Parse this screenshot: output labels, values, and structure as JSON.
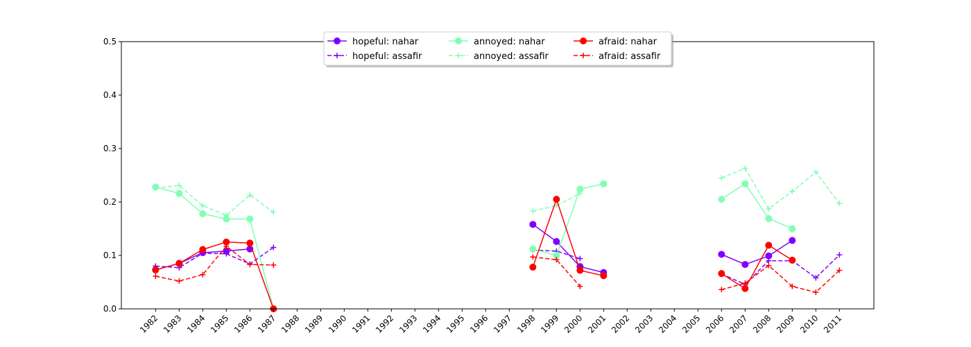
{
  "chart_data": {
    "type": "line",
    "title": "",
    "xlabel": "",
    "ylabel": "",
    "ylim": [
      0,
      0.5
    ],
    "yticks": [
      "0.0",
      "0.1",
      "0.2",
      "0.3",
      "0.4",
      "0.5"
    ],
    "x": [
      "1982",
      "1983",
      "1984",
      "1985",
      "1986",
      "1987",
      "1988",
      "1989",
      "1990",
      "1991",
      "1992",
      "1993",
      "1994",
      "1995",
      "1996",
      "1997",
      "1998",
      "1999",
      "2000",
      "2001",
      "2002",
      "2003",
      "2004",
      "2005",
      "2006",
      "2007",
      "2008",
      "2009",
      "2010",
      "2011"
    ],
    "legend": "upper-center",
    "grid": false,
    "series": [
      {
        "name": "hopeful: nahar",
        "color": "#8000ff",
        "style": "solid",
        "marker": "circle",
        "values": [
          0.073,
          0.085,
          0.105,
          0.108,
          0.112,
          null,
          null,
          null,
          null,
          null,
          null,
          null,
          null,
          null,
          null,
          null,
          0.158,
          0.126,
          0.079,
          0.068,
          null,
          null,
          null,
          null,
          0.102,
          0.083,
          0.099,
          0.128,
          null,
          null
        ]
      },
      {
        "name": "hopeful: assafir",
        "color": "#8000ff",
        "style": "dashed",
        "marker": "plus",
        "values": [
          0.08,
          0.077,
          0.104,
          0.103,
          0.084,
          0.115,
          null,
          null,
          null,
          null,
          null,
          null,
          null,
          null,
          null,
          null,
          0.11,
          0.108,
          0.094,
          null,
          null,
          null,
          null,
          null,
          0.065,
          0.046,
          0.09,
          0.09,
          0.058,
          0.101
        ]
      },
      {
        "name": "annoyed: nahar",
        "color": "#80ffb4",
        "style": "solid",
        "marker": "circle",
        "values": [
          0.228,
          0.216,
          0.178,
          0.168,
          0.168,
          0.0,
          null,
          null,
          null,
          null,
          null,
          null,
          null,
          null,
          null,
          null,
          0.112,
          0.1,
          0.224,
          0.234,
          null,
          null,
          null,
          null,
          0.205,
          0.234,
          0.169,
          0.15,
          null,
          null
        ]
      },
      {
        "name": "annoyed: assafir",
        "color": "#80ffb4",
        "style": "dashed",
        "marker": "plus",
        "values": [
          0.226,
          0.231,
          0.193,
          0.175,
          0.213,
          0.181,
          null,
          null,
          null,
          null,
          null,
          null,
          null,
          null,
          null,
          null,
          0.183,
          0.193,
          0.216,
          null,
          null,
          null,
          null,
          null,
          0.245,
          0.263,
          0.187,
          0.22,
          0.256,
          0.197
        ]
      },
      {
        "name": "afraid: nahar",
        "color": "#ff0000",
        "style": "solid",
        "marker": "circle",
        "values": [
          0.073,
          0.085,
          0.111,
          0.125,
          0.123,
          0.0,
          null,
          null,
          null,
          null,
          null,
          null,
          null,
          null,
          null,
          null,
          0.078,
          0.205,
          0.072,
          0.062,
          null,
          null,
          null,
          null,
          0.066,
          0.038,
          0.119,
          0.091,
          null,
          null
        ]
      },
      {
        "name": "afraid: assafir",
        "color": "#ff0000",
        "style": "dashed",
        "marker": "plus",
        "values": [
          0.061,
          0.052,
          0.064,
          0.117,
          0.083,
          0.082,
          null,
          null,
          null,
          null,
          null,
          null,
          null,
          null,
          null,
          null,
          0.097,
          0.092,
          0.042,
          null,
          null,
          null,
          null,
          null,
          0.036,
          0.048,
          0.081,
          0.042,
          0.031,
          0.072
        ]
      }
    ]
  }
}
